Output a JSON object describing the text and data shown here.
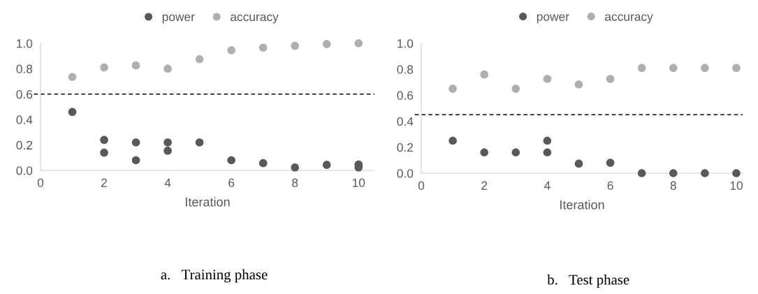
{
  "chart_data": [
    {
      "type": "scatter",
      "xlabel": "Iteration",
      "xlim": [
        0,
        10.5
      ],
      "xticks": [
        0,
        2,
        4,
        6,
        8,
        10
      ],
      "ylim": [
        0,
        1.0
      ],
      "yticks": [
        {
          "value": 0,
          "label": "0.0"
        },
        {
          "value": 0.2,
          "label": "0.2"
        },
        {
          "value": 0.4,
          "label": "0.4"
        },
        {
          "value": 0.6,
          "label": "0.6"
        },
        {
          "value": 0.8,
          "label": "0.8"
        },
        {
          "value": 1.0,
          "label": "1.0"
        }
      ],
      "grid": false,
      "legend": "top",
      "marker": "circle",
      "series": [
        {
          "name": "power",
          "color": "#595959",
          "x": [
            1,
            2,
            2,
            3,
            3,
            4,
            4,
            5,
            6,
            7,
            8,
            9,
            10,
            10
          ],
          "values": [
            0.46,
            0.24,
            0.14,
            0.22,
            0.08,
            0.22,
            0.155,
            0.22,
            0.08,
            0.057,
            0.023,
            0.043,
            0.047,
            0.023
          ]
        },
        {
          "name": "accuracy",
          "color": "#afafaf",
          "x": [
            1,
            2,
            3,
            4,
            5,
            6,
            7,
            8,
            9,
            10
          ],
          "values": [
            0.735,
            0.81,
            0.826,
            0.8,
            0.875,
            0.945,
            0.966,
            0.98,
            0.994,
            1.0
          ]
        }
      ],
      "ref_lines": [
        {
          "axis": "y",
          "value": 0.6,
          "line_style": "dashed",
          "color": "#000000"
        }
      ],
      "annotations": [
        "a.   Training phase"
      ]
    },
    {
      "type": "scatter",
      "xlabel": "Iteration",
      "xlim": [
        0,
        10.2
      ],
      "xticks": [
        0,
        2,
        4,
        6,
        8,
        10
      ],
      "ylim": [
        0,
        1.0
      ],
      "yticks": [
        {
          "value": 0,
          "label": "0.0"
        },
        {
          "value": 0.2,
          "label": "0.2"
        },
        {
          "value": 0.4,
          "label": "0.4"
        },
        {
          "value": 0.6,
          "label": "0.6"
        },
        {
          "value": 0.8,
          "label": "0.8"
        },
        {
          "value": 1.0,
          "label": "1.0"
        }
      ],
      "grid": false,
      "legend": "top",
      "marker": "circle",
      "series": [
        {
          "name": "power",
          "color": "#595959",
          "x": [
            1,
            2,
            3,
            4,
            4,
            5,
            6,
            7,
            8,
            9,
            10
          ],
          "values": [
            0.25,
            0.16,
            0.16,
            0.25,
            0.16,
            0.073,
            0.08,
            0.0,
            0.0,
            0.0,
            0.0
          ]
        },
        {
          "name": "accuracy",
          "color": "#afafaf",
          "x": [
            1,
            2,
            3,
            4,
            5,
            6,
            7,
            8,
            9,
            10
          ],
          "values": [
            0.65,
            0.76,
            0.65,
            0.726,
            0.683,
            0.726,
            0.81,
            0.81,
            0.81,
            0.81
          ]
        }
      ],
      "ref_lines": [
        {
          "axis": "y",
          "value": 0.45,
          "line_style": "dashed",
          "color": "#000000"
        }
      ],
      "annotations": [
        "b.   Test phase"
      ]
    }
  ]
}
